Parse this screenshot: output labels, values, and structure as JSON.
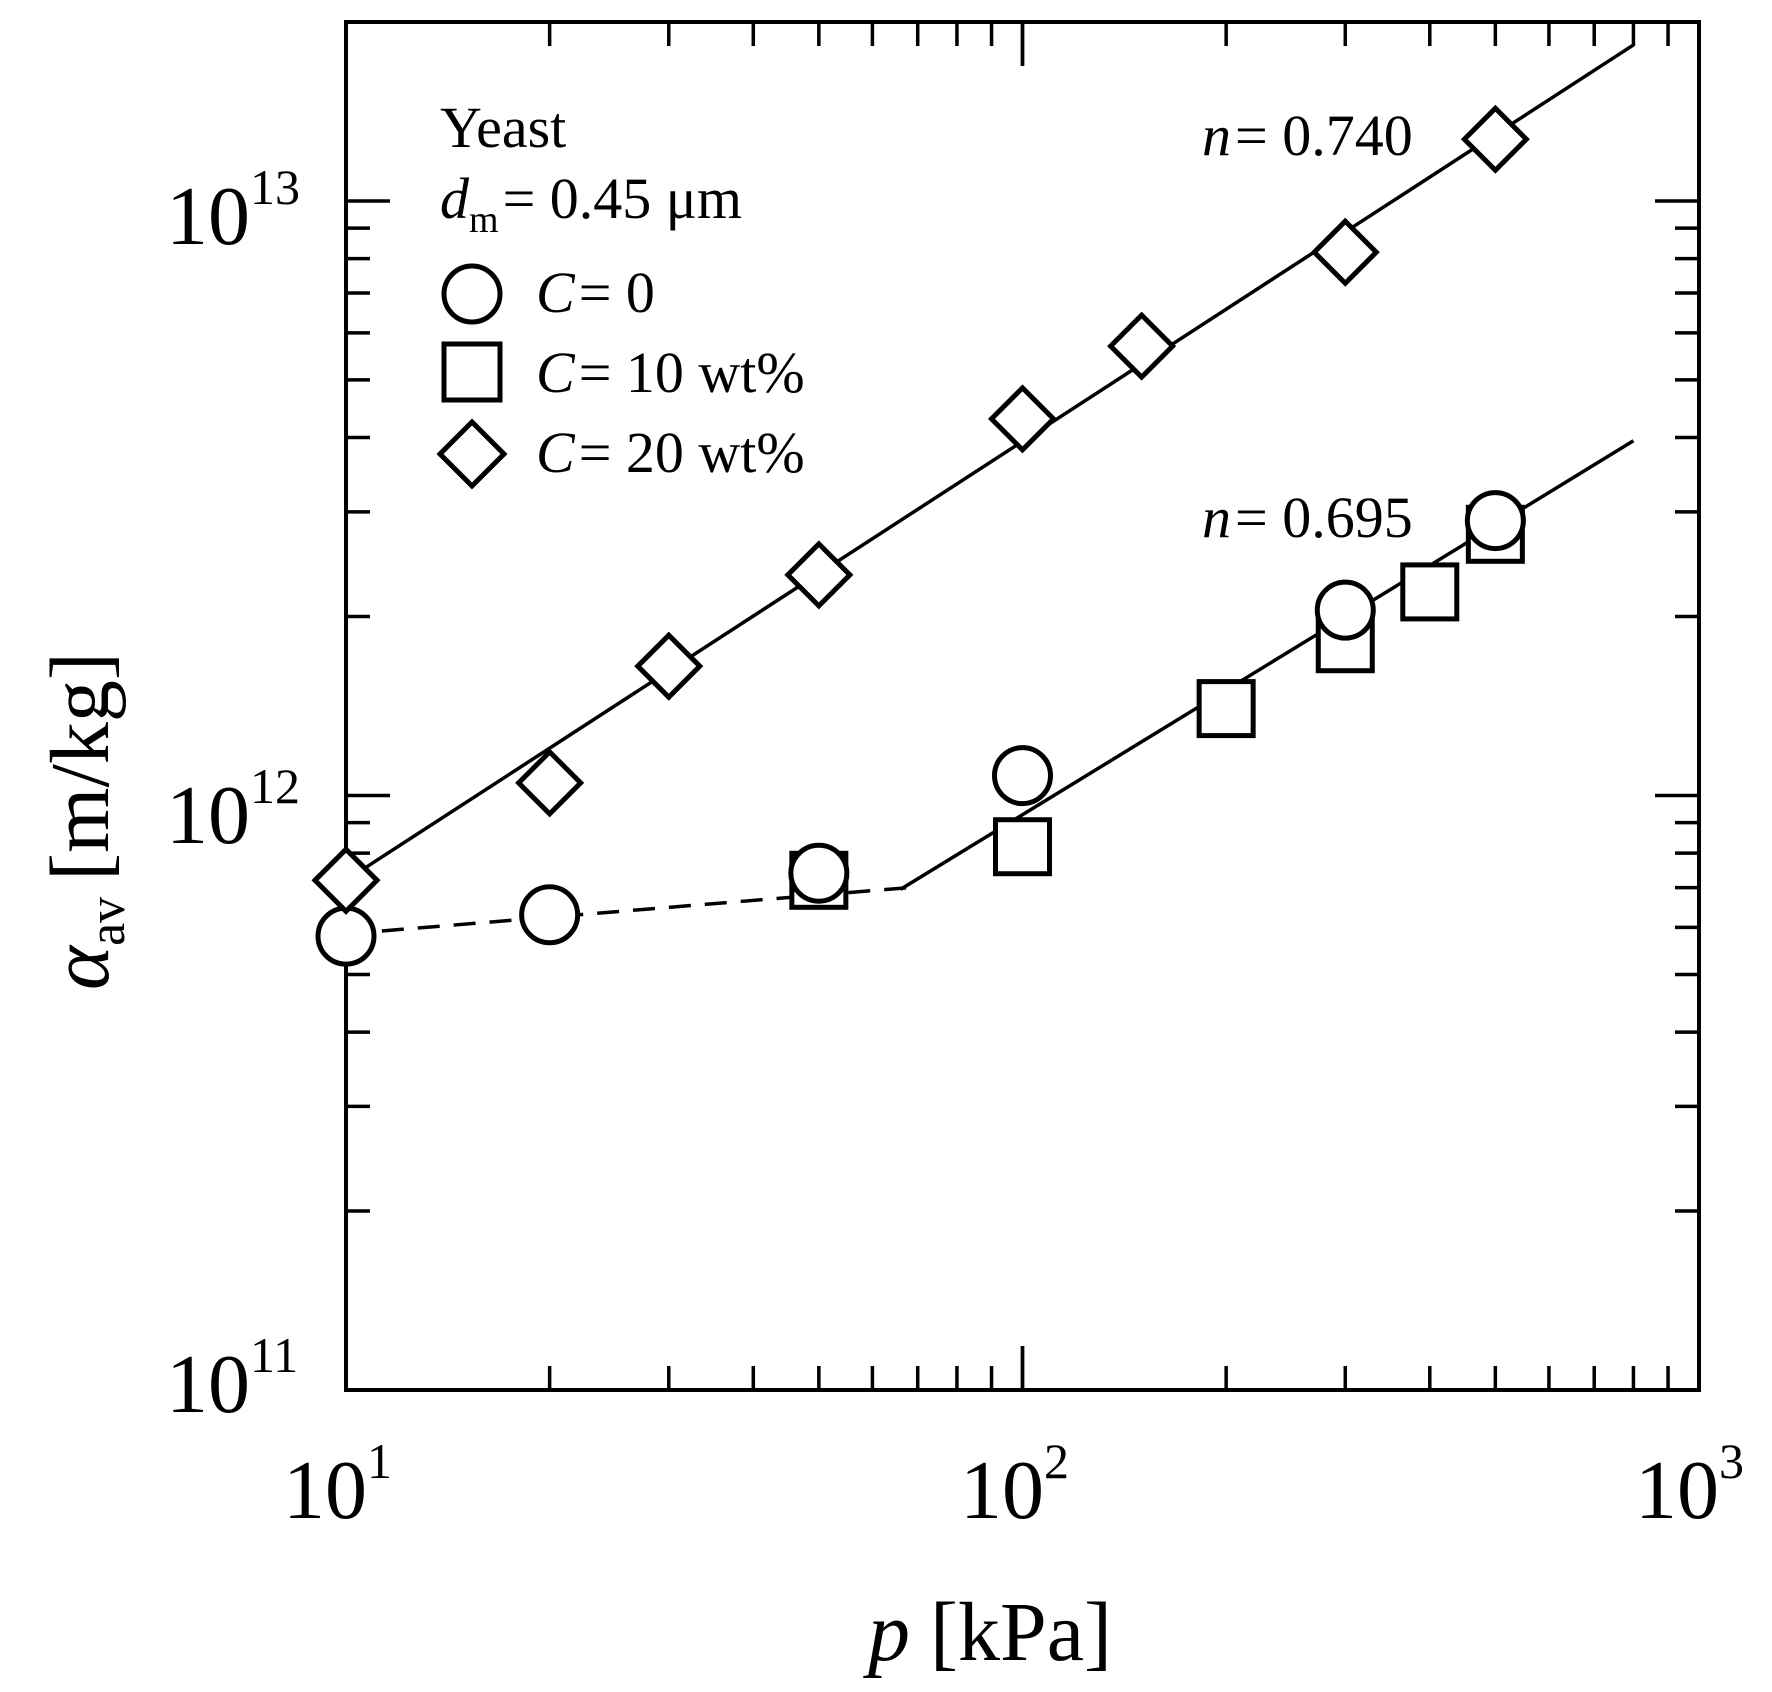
{
  "chart_data": {
    "type": "scatter",
    "scale": {
      "x": "log",
      "y": "log"
    },
    "xlim": [
      10,
      1000
    ],
    "ylim": [
      100000000000.0,
      20000000000000.0
    ],
    "xlabel": {
      "main": "p",
      "unit": "[kPa]"
    },
    "ylabel": {
      "symbol": "α",
      "subscript": "av",
      "unit": "[m/kg]"
    },
    "x_ticks": [
      {
        "value": 10,
        "base": "10",
        "exp": "1"
      },
      {
        "value": 100,
        "base": "10",
        "exp": "2"
      },
      {
        "value": 1000,
        "base": "10",
        "exp": "3"
      }
    ],
    "y_ticks": [
      {
        "value": 100000000000.0,
        "base": "10",
        "exp": "11"
      },
      {
        "value": 1000000000000.0,
        "base": "10",
        "exp": "12"
      },
      {
        "value": 10000000000000.0,
        "base": "10",
        "exp": "13"
      }
    ],
    "legend": {
      "placement": "top-left",
      "material": "Yeast",
      "membrane": {
        "symbol": "d",
        "subscript": "m",
        "value": "= 0.45 μm"
      },
      "entries": [
        {
          "marker": "circle",
          "var": "C",
          "text": "= 0"
        },
        {
          "marker": "square",
          "var": "C",
          "text": "= 10 wt%"
        },
        {
          "marker": "diamond",
          "var": "C",
          "text": "= 20 wt%"
        }
      ]
    },
    "series": [
      {
        "name": "C = 0",
        "marker": "circle",
        "points": [
          [
            10,
            580000000000.0
          ],
          [
            20,
            630000000000.0
          ],
          [
            50,
            740000000000.0
          ],
          [
            100,
            1080000000000.0
          ],
          [
            300,
            2050000000000.0
          ],
          [
            500,
            2900000000000.0
          ]
        ]
      },
      {
        "name": "C = 10 wt%",
        "marker": "square",
        "points": [
          [
            50,
            720000000000.0
          ],
          [
            100,
            820000000000.0
          ],
          [
            200,
            1400000000000.0
          ],
          [
            300,
            1800000000000.0
          ],
          [
            400,
            2200000000000.0
          ],
          [
            500,
            2750000000000.0
          ]
        ]
      },
      {
        "name": "C = 20 wt%",
        "marker": "diamond",
        "points": [
          [
            10,
            720000000000.0
          ],
          [
            20,
            1050000000000.0
          ],
          [
            30,
            1650000000000.0
          ],
          [
            50,
            2350000000000.0
          ],
          [
            100,
            4300000000000.0
          ],
          [
            150,
            5700000000000.0
          ],
          [
            300,
            8200000000000.0
          ],
          [
            500,
            12700000000000.0
          ]
        ]
      }
    ],
    "fit_lines": [
      {
        "name": "fit-c20",
        "style": "solid",
        "points": [
          [
            10,
            720000000000.0
          ],
          [
            800,
            18300000000000.0
          ]
        ]
      },
      {
        "name": "fit-c0-low",
        "style": "dashed",
        "points": [
          [
            10,
            585000000000.0
          ],
          [
            68,
            700000000000.0
          ]
        ]
      },
      {
        "name": "fit-c0-high",
        "style": "solid",
        "points": [
          [
            66,
            695000000000.0
          ],
          [
            800,
            3950000000000.0
          ]
        ]
      }
    ],
    "annotations": [
      {
        "name": "n-label-c20",
        "var": "n",
        "text": "= 0.740"
      },
      {
        "name": "n-label-c0",
        "var": "n",
        "text": "= 0.695"
      }
    ]
  }
}
